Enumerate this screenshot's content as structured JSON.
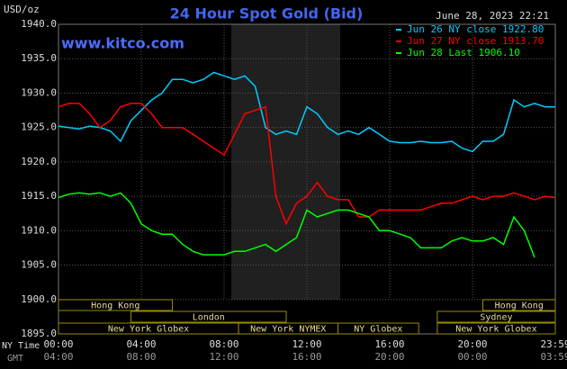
{
  "chart_data": {
    "type": "line",
    "title": "24 Hour Spot Gold (Bid)",
    "unit_label": "USD/oz",
    "timestamp": "June 28, 2023 22:21",
    "watermark": "www.kitco.com",
    "x_row_labels": [
      "NY Time",
      "GMT"
    ],
    "x": [
      0,
      0.5,
      1,
      1.5,
      2,
      2.5,
      3,
      3.5,
      4,
      4.5,
      5,
      5.5,
      6,
      6.5,
      7,
      7.5,
      8,
      8.5,
      9,
      9.5,
      10,
      10.5,
      11,
      11.5,
      12,
      12.5,
      13,
      13.5,
      14,
      14.5,
      15,
      15.5,
      16,
      16.5,
      17,
      17.5,
      18,
      18.5,
      19,
      19.5,
      20,
      20.5,
      21,
      21.5,
      22,
      22.5,
      23,
      23.5,
      24
    ],
    "series": [
      {
        "name": "Jun 26 NY close 1922.80",
        "color": "#00ccff",
        "values": [
          1925.2,
          1925,
          1924.8,
          1925.2,
          1925,
          1924.5,
          1923,
          1926,
          1927.5,
          1929,
          1930,
          1932,
          1932,
          1931.5,
          1932,
          1933,
          1932.5,
          1932,
          1932.5,
          1931,
          1925,
          1924,
          1924.5,
          1924,
          1928,
          1927,
          1925,
          1924,
          1924.5,
          1924,
          1925,
          1924,
          1923,
          1922.8,
          1922.8,
          1923,
          1922.8,
          1922.8,
          1923,
          1922,
          1921.5,
          1923,
          1923,
          1924,
          1929,
          1928,
          1928.5,
          1928,
          1928
        ]
      },
      {
        "name": "Jun 27 NY close 1913.70",
        "color": "#ff0000",
        "values": [
          1928,
          1928.5,
          1928.5,
          1927,
          1925,
          1926,
          1928,
          1928.5,
          1928.5,
          1927,
          1925,
          1925,
          1925,
          1924,
          1923,
          1922,
          1921,
          1924,
          1927,
          1927.5,
          1928,
          1915,
          1911,
          1914,
          1915,
          1917,
          1915,
          1914.5,
          1914.5,
          1912,
          1912,
          1913,
          1913,
          1913,
          1913,
          1913,
          1913.5,
          1914,
          1914,
          1914.5,
          1915,
          1914.5,
          1915,
          1915,
          1915.5,
          1915,
          1914.5,
          1915,
          1914.8
        ]
      },
      {
        "name": "Jun 28 Last 1906.10",
        "color": "#00ff00",
        "values": [
          1914.8,
          1915.3,
          1915.5,
          1915.3,
          1915.5,
          1915,
          1915.5,
          1914,
          1911,
          1910,
          1909.5,
          1909.5,
          1908,
          1907,
          1906.5,
          1906.5,
          1906.5,
          1907,
          1907,
          1907.5,
          1908,
          1907,
          1908,
          1909,
          1913,
          1912,
          1912.5,
          1913,
          1913,
          1912.5,
          1912,
          1910,
          1910,
          1909.5,
          1909,
          1907.5,
          1907.5,
          1907.5,
          1908.5,
          1909,
          1908.5,
          1908.5,
          1909,
          1908,
          1912,
          1910,
          1906.1,
          null,
          null
        ]
      }
    ],
    "xlim": [
      0,
      24
    ],
    "xticks": [
      {
        "value": 0,
        "label": "00:00"
      },
      {
        "value": 4,
        "label": "04:00"
      },
      {
        "value": 8,
        "label": "08:00"
      },
      {
        "value": 12,
        "label": "12:00"
      },
      {
        "value": 16,
        "label": "16:00"
      },
      {
        "value": 20,
        "label": "20:00"
      },
      {
        "value": 24,
        "label": "23:59"
      }
    ],
    "gmt_labels": [
      "04:00",
      "08:00",
      "12:00",
      "16:00",
      "20:00",
      "00:00",
      "03:59"
    ],
    "ylim": [
      1895,
      1940
    ],
    "yticks": [
      {
        "value": 1895,
        "label": "1895.0"
      },
      {
        "value": 1900,
        "label": "1900.0"
      },
      {
        "value": 1905,
        "label": "1905.0"
      },
      {
        "value": 1910,
        "label": "1910.0"
      },
      {
        "value": 1915,
        "label": "1915.0"
      },
      {
        "value": 1920,
        "label": "1920.0"
      },
      {
        "value": 1925,
        "label": "1925.0"
      },
      {
        "value": 1930,
        "label": "1930.0"
      },
      {
        "value": 1935,
        "label": "1935.0"
      },
      {
        "value": 1940,
        "label": "1940.0"
      }
    ],
    "grid": true,
    "sessions": [
      {
        "name": "Hong Kong",
        "start": 0,
        "end": 5.5,
        "row": 0
      },
      {
        "name": "London",
        "start": 3.5,
        "end": 11,
        "row": 1
      },
      {
        "name": "New York Globex",
        "start": 0,
        "end": 8.7,
        "row": 2
      },
      {
        "name": "New York NYMEX",
        "start": 8.7,
        "end": 13.5,
        "row": 2
      },
      {
        "name": "NY Globex",
        "start": 13.5,
        "end": 17.4,
        "row": 2
      },
      {
        "name": "Hong Kong",
        "start": 20.5,
        "end": 24,
        "row": 0
      },
      {
        "name": "Sydney",
        "start": 18.3,
        "end": 24,
        "row": 1
      },
      {
        "name": "New York Globex",
        "start": 18.3,
        "end": 24,
        "row": 2
      }
    ]
  }
}
